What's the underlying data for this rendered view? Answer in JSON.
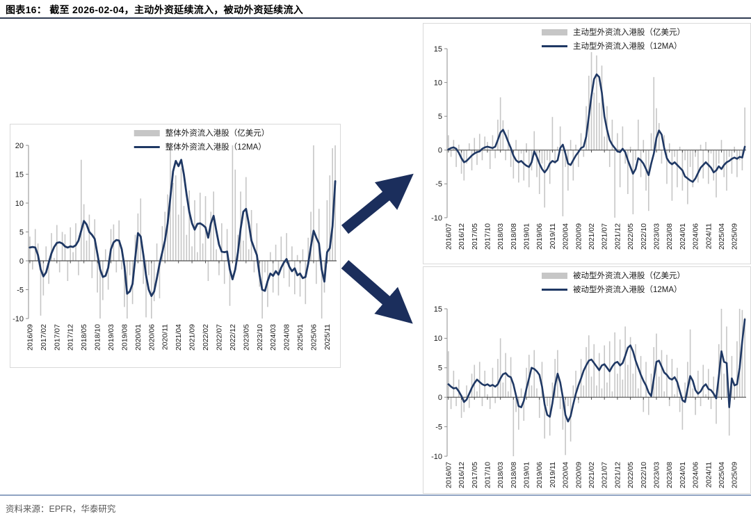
{
  "title": "图表16：  截至 2026-02-04，主动外资延续流入，被动外资延续流入",
  "source": "资料来源：EPFR，华泰研究",
  "colors": {
    "line": "#1F3864",
    "bar": "#C6C6C6",
    "arrow": "#1B2E5C",
    "zero_axis": "#4D4D4D",
    "axis": "#8C8C8C",
    "top_divider": "#2F3B52",
    "bottom_divider": "#8FA3C2",
    "box_border": "#D9D9D9",
    "text": "#1A1A1A",
    "source_text": "#595959"
  },
  "chart_data": [
    {
      "type": "bar+line",
      "id": "overall-foreign-flow",
      "legend_bar": "整体外资流入港股（亿美元）",
      "legend_line": "整体外资流入港股（12MA）",
      "ylim": [
        -10,
        20
      ],
      "yticks": [
        20,
        15,
        10,
        5,
        0,
        -5,
        -10
      ],
      "tick_step": 5,
      "x_tick_labels": [
        "2016/09",
        "2017/02",
        "2017/07",
        "2017/12",
        "2018/05",
        "2018/10",
        "2019/03",
        "2019/08",
        "2020/01",
        "2020/06",
        "2020/11",
        "2021/04",
        "2021/09",
        "2022/02",
        "2022/07",
        "2022/12",
        "2023/05",
        "2023/10",
        "2024/03",
        "2024/08",
        "2025/01",
        "2025/06",
        "2025/11"
      ],
      "line": [
        2.3,
        2.4,
        2.3,
        1.0,
        -1.5,
        -2.7,
        -2.0,
        -0.3,
        1.3,
        2.4,
        3.1,
        3.2,
        3.0,
        2.5,
        2.3,
        2.5,
        2.4,
        2.7,
        3.5,
        5.2,
        6.9,
        6.3,
        5.0,
        4.5,
        3.8,
        1.2,
        -1.5,
        -2.8,
        -2.6,
        -1.2,
        2.0,
        3.2,
        3.6,
        3.5,
        2.0,
        -1.0,
        -5.7,
        -5.3,
        -4.0,
        0.5,
        4.8,
        4.2,
        1.0,
        -2.5,
        -5.0,
        -6.1,
        -5.3,
        -3.0,
        -0.5,
        1.5,
        3.5,
        6.5,
        11.0,
        15.5,
        17.3,
        16.4,
        17.5,
        15.0,
        11.5,
        8.5,
        6.5,
        5.4,
        6.4,
        6.5,
        6.2,
        5.8,
        4.0,
        6.5,
        7.8,
        5.2,
        2.8,
        1.6,
        1.5,
        1.6,
        -1.5,
        -3.2,
        -1.5,
        1.5,
        5.5,
        8.5,
        9.0,
        6.5,
        3.5,
        2.2,
        1.0,
        -2.5,
        -5.0,
        -5.2,
        -3.5,
        -2.2,
        -2.6,
        -1.8,
        -2.4,
        -1.2,
        -0.3,
        0.3,
        -1.0,
        -1.8,
        -1.3,
        -2.5,
        -2.2,
        -3.0,
        -2.8,
        -0.5,
        2.5,
        5.2,
        4.0,
        3.0,
        -1.5,
        -3.6,
        1.5,
        2.2,
        6.0,
        13.8
      ],
      "bars": [
        4.2,
        -1.5,
        5.5,
        3.0,
        -9.5,
        -6.0,
        2.5,
        -4.0,
        4.8,
        0.5,
        6.2,
        -2.0,
        5.0,
        4.6,
        -3.5,
        5.8,
        1.5,
        6.5,
        -2.5,
        17.5,
        9.8,
        3.5,
        8.0,
        -3.0,
        7.2,
        -5.5,
        -10.0,
        -6.8,
        2.0,
        -5.0,
        5.5,
        6.3,
        -2.0,
        7.0,
        -1.5,
        -8.0,
        -10.0,
        -2.5,
        -7.5,
        4.5,
        8.2,
        10.8,
        -4.0,
        -9.8,
        -2.5,
        -10.0,
        -7.0,
        3.0,
        -6.5,
        6.0,
        8.5,
        11.5,
        20.0,
        13.5,
        14.8,
        8.0,
        16.0,
        9.5,
        4.5,
        12.2,
        2.5,
        10.5,
        1.5,
        11.8,
        3.0,
        11.2,
        -3.5,
        8.5,
        12.0,
        2.0,
        -2.5,
        6.5,
        -4.0,
        5.5,
        -7.8,
        20.0,
        15.8,
        4.5,
        12.0,
        3.5,
        14.5,
        2.0,
        8.8,
        -2.0,
        6.5,
        -4.5,
        -10.0,
        -2.0,
        -8.0,
        1.5,
        -5.5,
        2.8,
        -6.0,
        4.2,
        -3.0,
        4.8,
        -4.5,
        2.5,
        -5.8,
        1.0,
        -6.2,
        2.0,
        -7.5,
        4.0,
        8.5,
        20.0,
        -4.0,
        9.0,
        -10.0,
        -5.5,
        10.5,
        14.8,
        19.5,
        20.0
      ]
    },
    {
      "type": "bar+line",
      "id": "active-foreign-flow",
      "legend_bar": "主动型外资流入港股（亿美元）",
      "legend_line": "主动型外资流入港股（12MA）",
      "ylim": [
        -10,
        15
      ],
      "yticks": [
        15,
        10,
        5,
        0,
        -5,
        -10
      ],
      "tick_step": 5,
      "x_tick_labels": [
        "2016/07",
        "2016/12",
        "2017/05",
        "2017/10",
        "2018/03",
        "2018/08",
        "2019/01",
        "2019/06",
        "2019/11",
        "2020/04",
        "2020/09",
        "2021/02",
        "2021/07",
        "2021/12",
        "2022/05",
        "2022/10",
        "2023/03",
        "2023/08",
        "2024/01",
        "2024/06",
        "2024/11",
        "2025/04",
        "2025/09"
      ],
      "line": [
        0.1,
        0.3,
        0.4,
        0.2,
        -0.4,
        -1.2,
        -1.8,
        -1.6,
        -1.2,
        -0.8,
        -0.5,
        -0.3,
        -0.2,
        0.2,
        0.4,
        0.5,
        0.4,
        0.3,
        0.5,
        1.5,
        2.6,
        3.0,
        2.2,
        1.2,
        0.3,
        -0.8,
        -1.5,
        -1.8,
        -1.6,
        -2.0,
        -2.3,
        -2.5,
        -1.8,
        -0.2,
        -1.0,
        -2.0,
        -2.8,
        -3.3,
        -2.8,
        -2.0,
        -1.6,
        -1.8,
        -1.5,
        0.3,
        0.8,
        -0.5,
        -2.0,
        -2.2,
        -1.5,
        -0.8,
        -0.3,
        0.3,
        0.5,
        2.0,
        5.0,
        8.0,
        10.5,
        11.2,
        10.8,
        8.5,
        5.0,
        3.0,
        1.5,
        0.8,
        0.3,
        -0.2,
        -0.3,
        0.2,
        -0.3,
        -1.5,
        -2.5,
        -3.5,
        -2.8,
        -1.2,
        -1.5,
        -2.0,
        -2.8,
        -3.7,
        -2.0,
        -0.5,
        1.8,
        2.9,
        2.3,
        0.3,
        -1.2,
        -1.8,
        -2.1,
        -1.8,
        -2.2,
        -2.6,
        -3.0,
        -3.9,
        -4.2,
        -4.5,
        -4.7,
        -4.2,
        -3.4,
        -2.6,
        -2.2,
        -1.8,
        -2.2,
        -2.6,
        -3.3,
        -3.0,
        -2.4,
        -2.8,
        -2.2,
        -1.8,
        -1.6,
        -1.3,
        -1.1,
        -1.3,
        -1.0,
        -1.1,
        0.5
      ],
      "bars": [
        2.2,
        -1.0,
        1.5,
        -2.5,
        0.8,
        -3.5,
        -4.5,
        -2.0,
        1.0,
        -3.0,
        1.8,
        -2.2,
        2.4,
        -1.5,
        2.0,
        1.2,
        -2.8,
        2.2,
        -1.2,
        4.5,
        7.8,
        4.4,
        -1.5,
        3.0,
        -2.5,
        -4.2,
        1.5,
        -4.8,
        -0.5,
        -4.5,
        1.0,
        -5.5,
        -3.0,
        2.8,
        -4.0,
        -6.5,
        -2.0,
        -8.5,
        -1.5,
        -5.0,
        4.9,
        -2.0,
        0.5,
        3.5,
        -9.8,
        -2.5,
        -6.0,
        1.5,
        -4.5,
        0.8,
        -2.5,
        2.5,
        -1.0,
        6.5,
        11.0,
        14.5,
        8.5,
        14.0,
        7.0,
        12.5,
        2.0,
        6.5,
        -2.5,
        4.5,
        -10.0,
        2.5,
        -5.5,
        3.5,
        -2.0,
        -6.5,
        0.5,
        -9.5,
        -1.5,
        4.5,
        -4.0,
        1.5,
        -6.0,
        -9.0,
        2.5,
        10.8,
        6.2,
        4.0,
        -2.0,
        2.2,
        -5.0,
        1.0,
        -7.5,
        -1.0,
        -5.5,
        0.5,
        -6.0,
        -1.5,
        -8.0,
        -2.5,
        -5.5,
        -1.0,
        -4.8,
        0.8,
        -4.2,
        1.2,
        -5.0,
        -0.5,
        -4.5,
        -7.0,
        -2.0,
        1.5,
        -4.0,
        -6.0,
        -1.0,
        -3.5,
        0.5,
        -4.0,
        -1.5,
        -3.0,
        6.3
      ]
    },
    {
      "type": "bar+line",
      "id": "passive-foreign-flow",
      "legend_bar": "被动型外资流入港股（亿美元）",
      "legend_line": "被动型外资流入港股（12MA）",
      "ylim": [
        -10,
        15
      ],
      "yticks": [
        15,
        10,
        5,
        0,
        -5,
        -10
      ],
      "tick_step": 5,
      "x_tick_labels": [
        "2016/07",
        "2016/12",
        "2017/05",
        "2017/10",
        "2018/03",
        "2018/08",
        "2019/01",
        "2019/06",
        "2019/11",
        "2020/04",
        "2020/09",
        "2021/02",
        "2021/07",
        "2021/12",
        "2022/05",
        "2022/10",
        "2023/03",
        "2023/08",
        "2024/01",
        "2024/06",
        "2024/11",
        "2025/04",
        "2025/09"
      ],
      "line": [
        2.2,
        1.8,
        1.5,
        1.6,
        1.0,
        0.2,
        -0.8,
        -0.4,
        0.6,
        1.6,
        2.4,
        3.0,
        2.6,
        2.2,
        2.0,
        2.2,
        1.9,
        2.1,
        1.8,
        2.2,
        3.2,
        3.9,
        4.1,
        3.6,
        3.4,
        2.2,
        0.3,
        -1.5,
        -1.7,
        -0.6,
        1.4,
        3.2,
        5.0,
        4.8,
        4.4,
        3.8,
        1.8,
        -1.2,
        -3.0,
        -3.3,
        -1.0,
        2.0,
        4.0,
        2.5,
        0.0,
        -3.0,
        -4.1,
        -3.2,
        -1.2,
        0.6,
        2.0,
        3.2,
        4.5,
        5.4,
        6.2,
        6.4,
        5.8,
        5.2,
        4.6,
        5.4,
        5.6,
        5.0,
        4.4,
        5.2,
        5.8,
        6.0,
        5.4,
        5.8,
        7.0,
        8.4,
        8.8,
        7.8,
        6.2,
        5.0,
        3.8,
        2.8,
        2.0,
        0.8,
        0.2,
        3.2,
        6.0,
        6.2,
        5.2,
        4.2,
        3.8,
        3.2,
        3.0,
        3.4,
        2.6,
        1.0,
        -0.5,
        -0.8,
        1.5,
        3.6,
        2.8,
        1.2,
        0.6,
        1.0,
        1.8,
        2.2,
        1.4,
        1.2,
        0.6,
        -0.2,
        3.5,
        7.8,
        6.0,
        5.8,
        -1.7,
        3.2,
        2.0,
        2.2,
        5.0,
        9.5,
        13.2
      ],
      "bars": [
        7.8,
        -2.0,
        4.5,
        -1.5,
        3.0,
        -3.5,
        -2.5,
        2.0,
        -1.8,
        4.0,
        5.5,
        1.0,
        6.0,
        -1.5,
        4.5,
        0.5,
        -2.0,
        5.0,
        -1.0,
        6.5,
        10.0,
        2.5,
        7.5,
        1.0,
        6.8,
        -10.0,
        -2.5,
        -5.5,
        1.5,
        -4.0,
        5.0,
        7.2,
        2.0,
        8.0,
        1.5,
        -3.5,
        6.0,
        -7.0,
        -1.5,
        -6.5,
        2.5,
        6.5,
        8.0,
        -2.0,
        -5.5,
        -9.8,
        -1.5,
        -7.5,
        2.0,
        4.5,
        -1.0,
        6.5,
        2.0,
        8.5,
        10.5,
        3.5,
        9.0,
        2.0,
        7.5,
        1.5,
        8.8,
        2.5,
        9.5,
        1.0,
        11.0,
        4.0,
        9.8,
        3.0,
        12.0,
        5.5,
        10.2,
        4.0,
        9.0,
        1.5,
        7.0,
        -2.5,
        6.0,
        -3.0,
        4.0,
        8.5,
        10.8,
        3.5,
        8.0,
        1.0,
        7.2,
        -1.5,
        6.5,
        0.5,
        5.0,
        -2.5,
        -5.5,
        2.5,
        6.0,
        11.5,
        1.5,
        -3.0,
        4.5,
        -1.5,
        5.5,
        0.5,
        4.8,
        -2.0,
        3.5,
        -4.5,
        9.0,
        15.0,
        4.0,
        12.0,
        -6.5,
        7.0,
        2.5,
        9.5,
        15.0,
        14.8,
        13.5
      ]
    }
  ]
}
